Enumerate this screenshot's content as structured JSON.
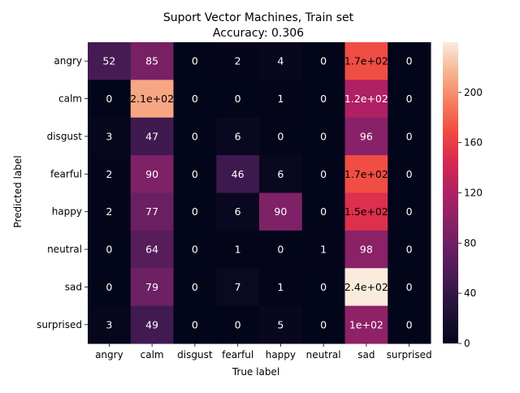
{
  "chart_data": {
    "type": "heatmap",
    "title": "Suport Vector Machines, Train set",
    "subtitle": "Accuracy: 0.306",
    "xlabel": "True label",
    "ylabel": "Predicted label",
    "x_categories": [
      "angry",
      "calm",
      "disgust",
      "fearful",
      "happy",
      "neutral",
      "sad",
      "surprised"
    ],
    "y_categories": [
      "angry",
      "calm",
      "disgust",
      "fearful",
      "happy",
      "neutral",
      "sad",
      "surprised"
    ],
    "values": [
      [
        52,
        85,
        0,
        2,
        4,
        0,
        170,
        0
      ],
      [
        0,
        210,
        0,
        0,
        1,
        0,
        120,
        0
      ],
      [
        3,
        47,
        0,
        6,
        0,
        0,
        96,
        0
      ],
      [
        2,
        90,
        0,
        46,
        6,
        0,
        170,
        0
      ],
      [
        2,
        77,
        0,
        6,
        90,
        0,
        150,
        0
      ],
      [
        0,
        64,
        0,
        1,
        0,
        1,
        98,
        0
      ],
      [
        0,
        79,
        0,
        7,
        1,
        0,
        240,
        0
      ],
      [
        3,
        49,
        0,
        0,
        5,
        0,
        100,
        0
      ]
    ],
    "cell_labels": [
      [
        "52",
        "85",
        "0",
        "2",
        "4",
        "0",
        "1.7e+02",
        "0"
      ],
      [
        "0",
        "2.1e+02",
        "0",
        "0",
        "1",
        "0",
        "1.2e+02",
        "0"
      ],
      [
        "3",
        "47",
        "0",
        "6",
        "0",
        "0",
        "96",
        "0"
      ],
      [
        "2",
        "90",
        "0",
        "46",
        "6",
        "0",
        "1.7e+02",
        "0"
      ],
      [
        "2",
        "77",
        "0",
        "6",
        "90",
        "0",
        "1.5e+02",
        "0"
      ],
      [
        "0",
        "64",
        "0",
        "1",
        "0",
        "1",
        "98",
        "0"
      ],
      [
        "0",
        "79",
        "0",
        "7",
        "1",
        "0",
        "2.4e+02",
        "0"
      ],
      [
        "3",
        "49",
        "0",
        "0",
        "5",
        "0",
        "1e+02",
        "0"
      ]
    ],
    "colormap": "rocket",
    "vmin": 0,
    "vmax": 240,
    "colorbar_ticks": [
      0,
      40,
      80,
      120,
      160,
      200
    ],
    "colorbar_tick_labels": [
      "0",
      "40",
      "80",
      "120",
      "160",
      "200"
    ],
    "text_color_dark": "#000000",
    "text_color_light": "#ffffff"
  }
}
